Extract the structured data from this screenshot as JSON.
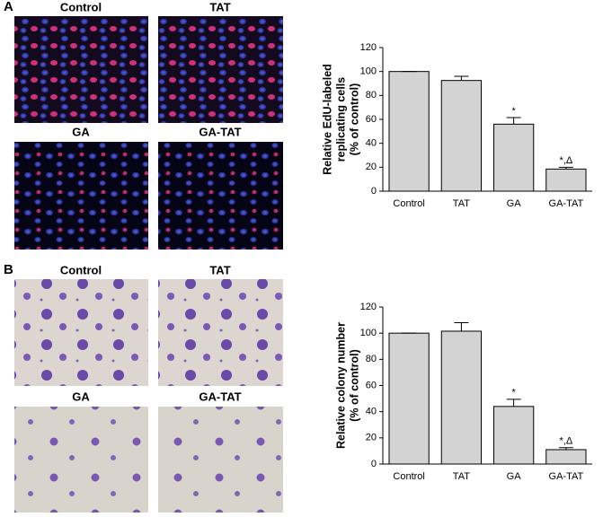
{
  "panels": [
    {
      "label": "A",
      "images": [
        "Control",
        "TAT",
        "GA",
        "GA-TAT"
      ]
    },
    {
      "label": "B",
      "images": [
        "Control",
        "TAT",
        "GA",
        "GA-TAT"
      ]
    }
  ],
  "chart_data": [
    {
      "type": "bar",
      "ylabel": [
        "Relative EdU-labeled",
        "replicating cells",
        "(% of control)"
      ],
      "categories": [
        "Control",
        "TAT",
        "GA",
        "GA-TAT"
      ],
      "values": [
        100,
        92.5,
        56,
        18.5
      ],
      "errors": [
        0,
        3.5,
        5.5,
        1.5
      ],
      "annotations": [
        null,
        null,
        "*",
        "*,Δ"
      ],
      "color": "#d3d3d3",
      "ylim": [
        0,
        120
      ],
      "yticks": [
        0,
        20,
        40,
        60,
        80,
        100,
        120
      ]
    },
    {
      "type": "bar",
      "ylabel": [
        "Relative colony number",
        "(% of control)"
      ],
      "categories": [
        "Control",
        "TAT",
        "GA",
        "GA-TAT"
      ],
      "values": [
        100,
        101.5,
        44,
        11
      ],
      "errors": [
        0,
        6.5,
        5.5,
        1.5
      ],
      "annotations": [
        null,
        null,
        "*",
        "*,Δ"
      ],
      "color": "#d3d3d3",
      "ylim": [
        0,
        120
      ],
      "yticks": [
        0,
        20,
        40,
        60,
        80,
        100,
        120
      ]
    }
  ]
}
